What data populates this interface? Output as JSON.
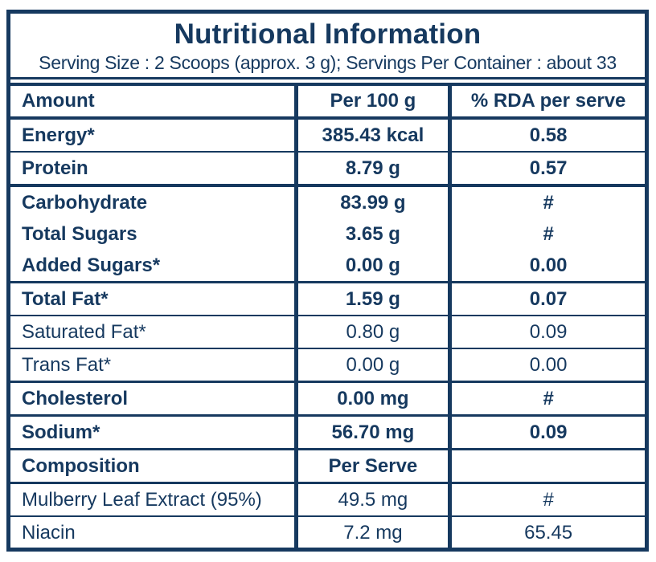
{
  "accent_color": "#16395F",
  "background_color": "#FFFFFF",
  "header": {
    "title": "Nutritional Information",
    "serving_info": "Serving Size : 2 Scoops (approx. 3 g); Servings Per Container : about 33"
  },
  "table": {
    "columns": [
      "Amount",
      "Per 100 g",
      "% RDA per serve"
    ],
    "rows": [
      {
        "label": "Energy*",
        "value": "385.43 kcal",
        "rda": "0.58",
        "bold": true,
        "border": "none"
      },
      {
        "label": "Protein",
        "value": "8.79 g",
        "rda": "0.57",
        "bold": true,
        "border": "thin"
      },
      {
        "label": "Carbohydrate",
        "value": "83.99 g",
        "rda": "#",
        "bold": true,
        "border": "thick"
      },
      {
        "label": "Total Sugars",
        "value": "3.65 g",
        "rda": "#",
        "bold": true,
        "border": "none"
      },
      {
        "label": "Added Sugars*",
        "value": "0.00 g",
        "rda": "0.00",
        "bold": true,
        "border": "none"
      },
      {
        "label": "Total Fat*",
        "value": "1.59 g",
        "rda": "0.07",
        "bold": true,
        "border": "med"
      },
      {
        "label": "Saturated Fat*",
        "value": "0.80 g",
        "rda": "0.09",
        "bold": false,
        "border": "thin"
      },
      {
        "label": "Trans Fat*",
        "value": "0.00 g",
        "rda": "0.00",
        "bold": false,
        "border": "thin"
      },
      {
        "label": "Cholesterol",
        "value": "0.00 mg",
        "rda": "#",
        "bold": true,
        "border": "med"
      },
      {
        "label": "Sodium*",
        "value": "56.70 mg",
        "rda": "0.09",
        "bold": true,
        "border": "med"
      },
      {
        "label": "Composition",
        "value": "Per Serve",
        "rda": "",
        "bold": true,
        "border": "med"
      },
      {
        "label": "Mulberry Leaf Extract (95%)",
        "value": "49.5 mg",
        "rda": "#",
        "bold": false,
        "border": "med"
      },
      {
        "label": "Niacin",
        "value": "7.2 mg",
        "rda": "65.45",
        "bold": false,
        "border": "thin"
      }
    ]
  }
}
